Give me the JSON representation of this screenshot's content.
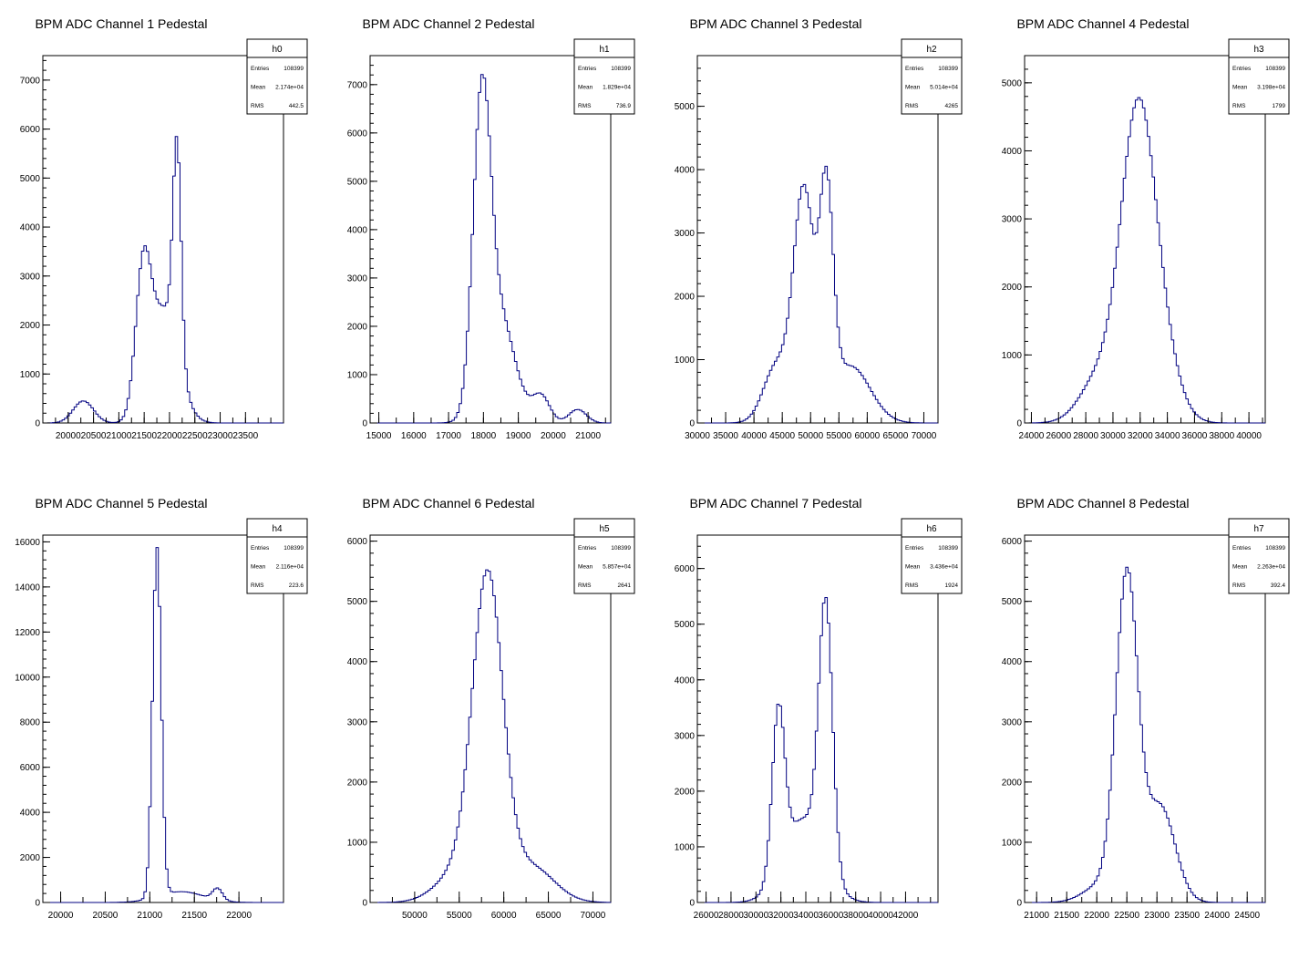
{
  "chart_data": [
    {
      "type": "bar",
      "title": "BPM ADC Channel 1 Pedestal",
      "xlim": [
        19500,
        24250
      ],
      "ylim": [
        0,
        7500
      ],
      "xticks": [
        20000,
        20500,
        21000,
        21500,
        22000,
        22500,
        23000,
        23500
      ],
      "yticks": [
        0,
        1000,
        2000,
        3000,
        4000,
        5000,
        6000,
        7000
      ],
      "stats": {
        "name": "h0",
        "rows": [
          {
            "label": "Entries",
            "value": "108399"
          },
          {
            "label": "Mean",
            "value": "2.174e+04"
          },
          {
            "label": "RMS",
            "value": "442.5"
          }
        ]
      },
      "peaks": [
        {
          "mu": 20300,
          "sigma": 200,
          "amp": 450
        },
        {
          "mu": 21480,
          "sigma": 150,
          "amp": 2800
        },
        {
          "mu": 21900,
          "sigma": 280,
          "amp": 2300
        },
        {
          "mu": 22150,
          "sigma": 80,
          "amp": 4300
        }
      ]
    },
    {
      "type": "bar",
      "title": "BPM ADC Channel 2 Pedestal",
      "xlim": [
        14750,
        21650
      ],
      "ylim": [
        0,
        7600
      ],
      "xticks": [
        15000,
        16000,
        17000,
        18000,
        19000,
        20000,
        21000
      ],
      "yticks": [
        0,
        1000,
        2000,
        3000,
        4000,
        5000,
        6000,
        7000
      ],
      "stats": {
        "name": "h1",
        "rows": [
          {
            "label": "Entries",
            "value": "108399"
          },
          {
            "label": "Mean",
            "value": "1.829e+04"
          },
          {
            "label": "RMS",
            "value": "736.9"
          }
        ]
      },
      "peaks": [
        {
          "mu": 17950,
          "sigma": 250,
          "amp": 6000
        },
        {
          "mu": 18450,
          "sigma": 450,
          "amp": 2200
        },
        {
          "mu": 19650,
          "sigma": 250,
          "amp": 550
        },
        {
          "mu": 20700,
          "sigma": 250,
          "amp": 280
        }
      ]
    },
    {
      "type": "bar",
      "title": "BPM ADC Channel 3 Pedestal",
      "xlim": [
        30000,
        72500
      ],
      "ylim": [
        0,
        5800
      ],
      "xticks": [
        30000,
        35000,
        40000,
        45000,
        50000,
        55000,
        60000,
        65000,
        70000
      ],
      "yticks": [
        0,
        1000,
        2000,
        3000,
        4000,
        5000
      ],
      "stats": {
        "name": "h2",
        "rows": [
          {
            "label": "Entries",
            "value": "108399"
          },
          {
            "label": "Mean",
            "value": "5.014e+04"
          },
          {
            "label": "RMS",
            "value": "4265"
          }
        ]
      },
      "peaks": [
        {
          "mu": 44000,
          "sigma": 2300,
          "amp": 900
        },
        {
          "mu": 48800,
          "sigma": 1800,
          "amp": 3600
        },
        {
          "mu": 52800,
          "sigma": 1200,
          "amp": 3300
        },
        {
          "mu": 57000,
          "sigma": 3500,
          "amp": 900
        }
      ]
    },
    {
      "type": "bar",
      "title": "BPM ADC Channel 4 Pedestal",
      "xlim": [
        23500,
        41200
      ],
      "ylim": [
        0,
        5400
      ],
      "xticks": [
        24000,
        26000,
        28000,
        30000,
        32000,
        34000,
        36000,
        38000,
        40000
      ],
      "yticks": [
        0,
        1000,
        2000,
        3000,
        4000,
        5000
      ],
      "stats": {
        "name": "h3",
        "rows": [
          {
            "label": "Entries",
            "value": "108399"
          },
          {
            "label": "Mean",
            "value": "3.198e+04"
          },
          {
            "label": "RMS",
            "value": "1799"
          }
        ]
      },
      "peaks": [
        {
          "mu": 31800,
          "sigma": 1250,
          "amp": 4300
        },
        {
          "mu": 29000,
          "sigma": 1400,
          "amp": 650
        },
        {
          "mu": 33500,
          "sigma": 1300,
          "amp": 900
        }
      ]
    },
    {
      "type": "bar",
      "title": "BPM ADC Channel 5 Pedestal",
      "xlim": [
        19800,
        22500
      ],
      "ylim": [
        0,
        16300
      ],
      "xticks": [
        20000,
        20500,
        21000,
        21500,
        22000
      ],
      "yticks": [
        0,
        2000,
        4000,
        6000,
        8000,
        10000,
        12000,
        14000,
        16000
      ],
      "stats": {
        "name": "h4",
        "rows": [
          {
            "label": "Entries",
            "value": "108399"
          },
          {
            "label": "Mean",
            "value": "2.116e+04"
          },
          {
            "label": "RMS",
            "value": "223.6"
          }
        ]
      },
      "peaks": [
        {
          "mu": 21080,
          "sigma": 48,
          "amp": 15500
        },
        {
          "mu": 21350,
          "sigma": 250,
          "amp": 480
        },
        {
          "mu": 21760,
          "sigma": 55,
          "amp": 520
        }
      ]
    },
    {
      "type": "bar",
      "title": "BPM ADC Channel 6 Pedestal",
      "xlim": [
        45000,
        72000
      ],
      "ylim": [
        0,
        6100
      ],
      "xticks": [
        50000,
        55000,
        60000,
        65000,
        70000
      ],
      "yticks": [
        0,
        1000,
        2000,
        3000,
        4000,
        5000,
        6000
      ],
      "stats": {
        "name": "h5",
        "rows": [
          {
            "label": "Entries",
            "value": "108399"
          },
          {
            "label": "Mean",
            "value": "5.857e+04"
          },
          {
            "label": "RMS",
            "value": "2641"
          }
        ]
      },
      "peaks": [
        {
          "mu": 58200,
          "sigma": 1700,
          "amp": 5200
        },
        {
          "mu": 63000,
          "sigma": 2600,
          "amp": 600
        },
        {
          "mu": 55000,
          "sigma": 2500,
          "amp": 500
        }
      ]
    },
    {
      "type": "bar",
      "title": "BPM ADC Channel 7 Pedestal",
      "xlim": [
        25300,
        44600
      ],
      "ylim": [
        0,
        6600
      ],
      "xticks": [
        26000,
        28000,
        30000,
        32000,
        34000,
        36000,
        38000,
        40000,
        42000
      ],
      "yticks": [
        0,
        1000,
        2000,
        3000,
        4000,
        5000,
        6000
      ],
      "stats": {
        "name": "h6",
        "rows": [
          {
            "label": "Entries",
            "value": "108399"
          },
          {
            "label": "Mean",
            "value": "3.436e+04"
          },
          {
            "label": "RMS",
            "value": "1924"
          }
        ]
      },
      "peaks": [
        {
          "mu": 31800,
          "sigma": 500,
          "amp": 2900
        },
        {
          "mu": 35600,
          "sigma": 550,
          "amp": 4700
        },
        {
          "mu": 33800,
          "sigma": 1600,
          "amp": 1500
        }
      ]
    },
    {
      "type": "bar",
      "title": "BPM ADC Channel 8 Pedestal",
      "xlim": [
        20800,
        24800
      ],
      "ylim": [
        0,
        6100
      ],
      "xticks": [
        21000,
        21500,
        22000,
        22500,
        23000,
        23500,
        24000,
        24500
      ],
      "yticks": [
        0,
        1000,
        2000,
        3000,
        4000,
        5000,
        6000
      ],
      "stats": {
        "name": "h7",
        "rows": [
          {
            "label": "Entries",
            "value": "108399"
          },
          {
            "label": "Mean",
            "value": "2.263e+04"
          },
          {
            "label": "RMS",
            "value": "392.4"
          }
        ]
      },
      "peaks": [
        {
          "mu": 22500,
          "sigma": 180,
          "amp": 5300
        },
        {
          "mu": 23050,
          "sigma": 250,
          "amp": 1600
        },
        {
          "mu": 22100,
          "sigma": 300,
          "amp": 300
        }
      ]
    }
  ],
  "colors": {
    "line": "#000080",
    "axis": "#000000",
    "background": "#ffffff"
  }
}
